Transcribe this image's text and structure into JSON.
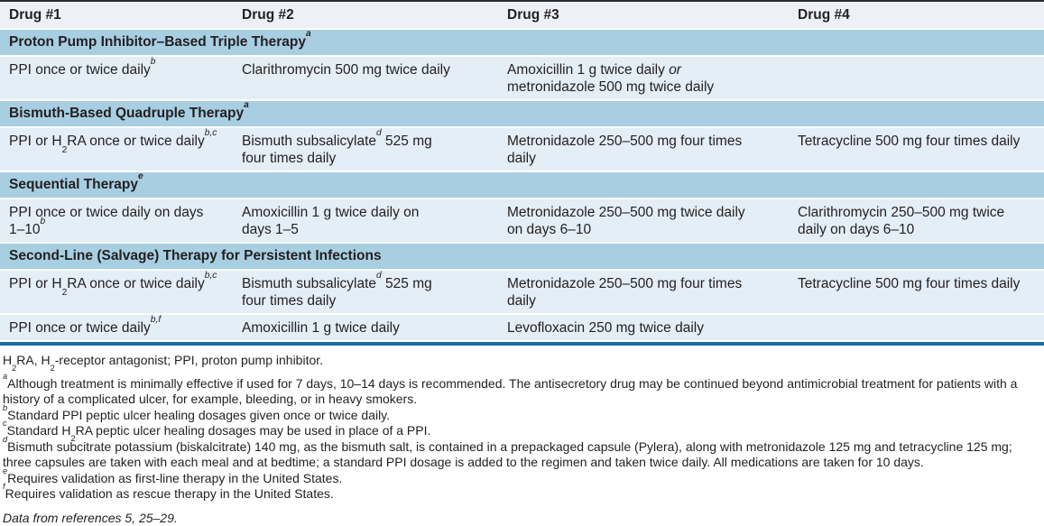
{
  "colors": {
    "top_border": "#2b2b31",
    "header_bg": "#edf1f5",
    "section_bg": "#a8cee2",
    "row_bg": "#e3eef7",
    "bottom_rule": "#166f9e",
    "text": "#231f20"
  },
  "table": {
    "columns": [
      "Drug #1",
      "Drug #2",
      "Drug #3",
      "Drug #4"
    ],
    "sections": [
      {
        "header": "Proton Pump Inhibitor–Based Triple Therapy^{a}",
        "rows": [
          [
            "PPI once or twice daily^{b}",
            "Clarithromycin 500 mg twice daily",
            "Amoxicillin 1 g twice daily *or*\nmetronidazole 500 mg twice daily",
            ""
          ]
        ]
      },
      {
        "header": "Bismuth-Based Quadruple Therapy^{a}",
        "rows": [
          [
            "PPI or H~{2}RA once or twice daily^{b,c}",
            "Bismuth subsalicylate^{d} 525 mg\nfour times daily",
            "Metronidazole 250–500 mg four times\ndaily",
            "Tetracycline 500 mg four times daily"
          ]
        ]
      },
      {
        "header": "Sequential Therapy^{e}",
        "rows": [
          [
            "PPI once or twice daily on days\n1–10^{b}",
            "Amoxicillin 1 g twice daily on\ndays 1–5",
            "Metronidazole 250–500 mg twice daily\non days 6–10",
            "Clarithromycin 250–500 mg twice\ndaily on days 6–10"
          ]
        ]
      },
      {
        "header": "Second-Line (Salvage) Therapy for Persistent Infections",
        "rows": [
          [
            "PPI or H~{2}RA once or twice daily^{b,c}",
            "Bismuth subsalicylate^{d} 525 mg\nfour times daily",
            "Metronidazole 250–500 mg four times\ndaily",
            "Tetracycline 500 mg four times daily"
          ],
          [
            "PPI once or twice daily^{b,f}",
            "Amoxicillin 1 g twice daily",
            "Levofloxacin 250 mg twice daily",
            ""
          ]
        ]
      }
    ]
  },
  "footer": {
    "abbreviations": "H~{2}RA, H~{2}-receptor antagonist; PPI, proton pump inhibitor.",
    "footnotes": [
      "^{a}Although treatment is minimally effective if used for 7 days, 10–14 days is recommended. The antisecretory drug may be continued beyond antimicrobial treatment for patients with a history of a complicated ulcer, for example, bleeding, or in heavy smokers.",
      "^{b}Standard PPI peptic ulcer healing dosages given once or twice daily.",
      "^{c}Standard H~{2}RA peptic ulcer healing dosages may be used in place of a PPI.",
      "^{d}Bismuth subcitrate potassium (biskalcitrate) 140 mg, as the bismuth salt, is contained in a prepackaged capsule (Pylera), along with metronidazole 125 mg and tetracycline 125 mg; three capsules are taken with each meal and at bedtime; a standard PPI dosage is added to the regimen and taken twice daily. All medications are taken for 10 days.",
      "^{e}Requires validation as first-line therapy in the United States.",
      "^{f}Requires validation as rescue therapy in the United States."
    ],
    "source": "Data from references 5, 25–29."
  }
}
